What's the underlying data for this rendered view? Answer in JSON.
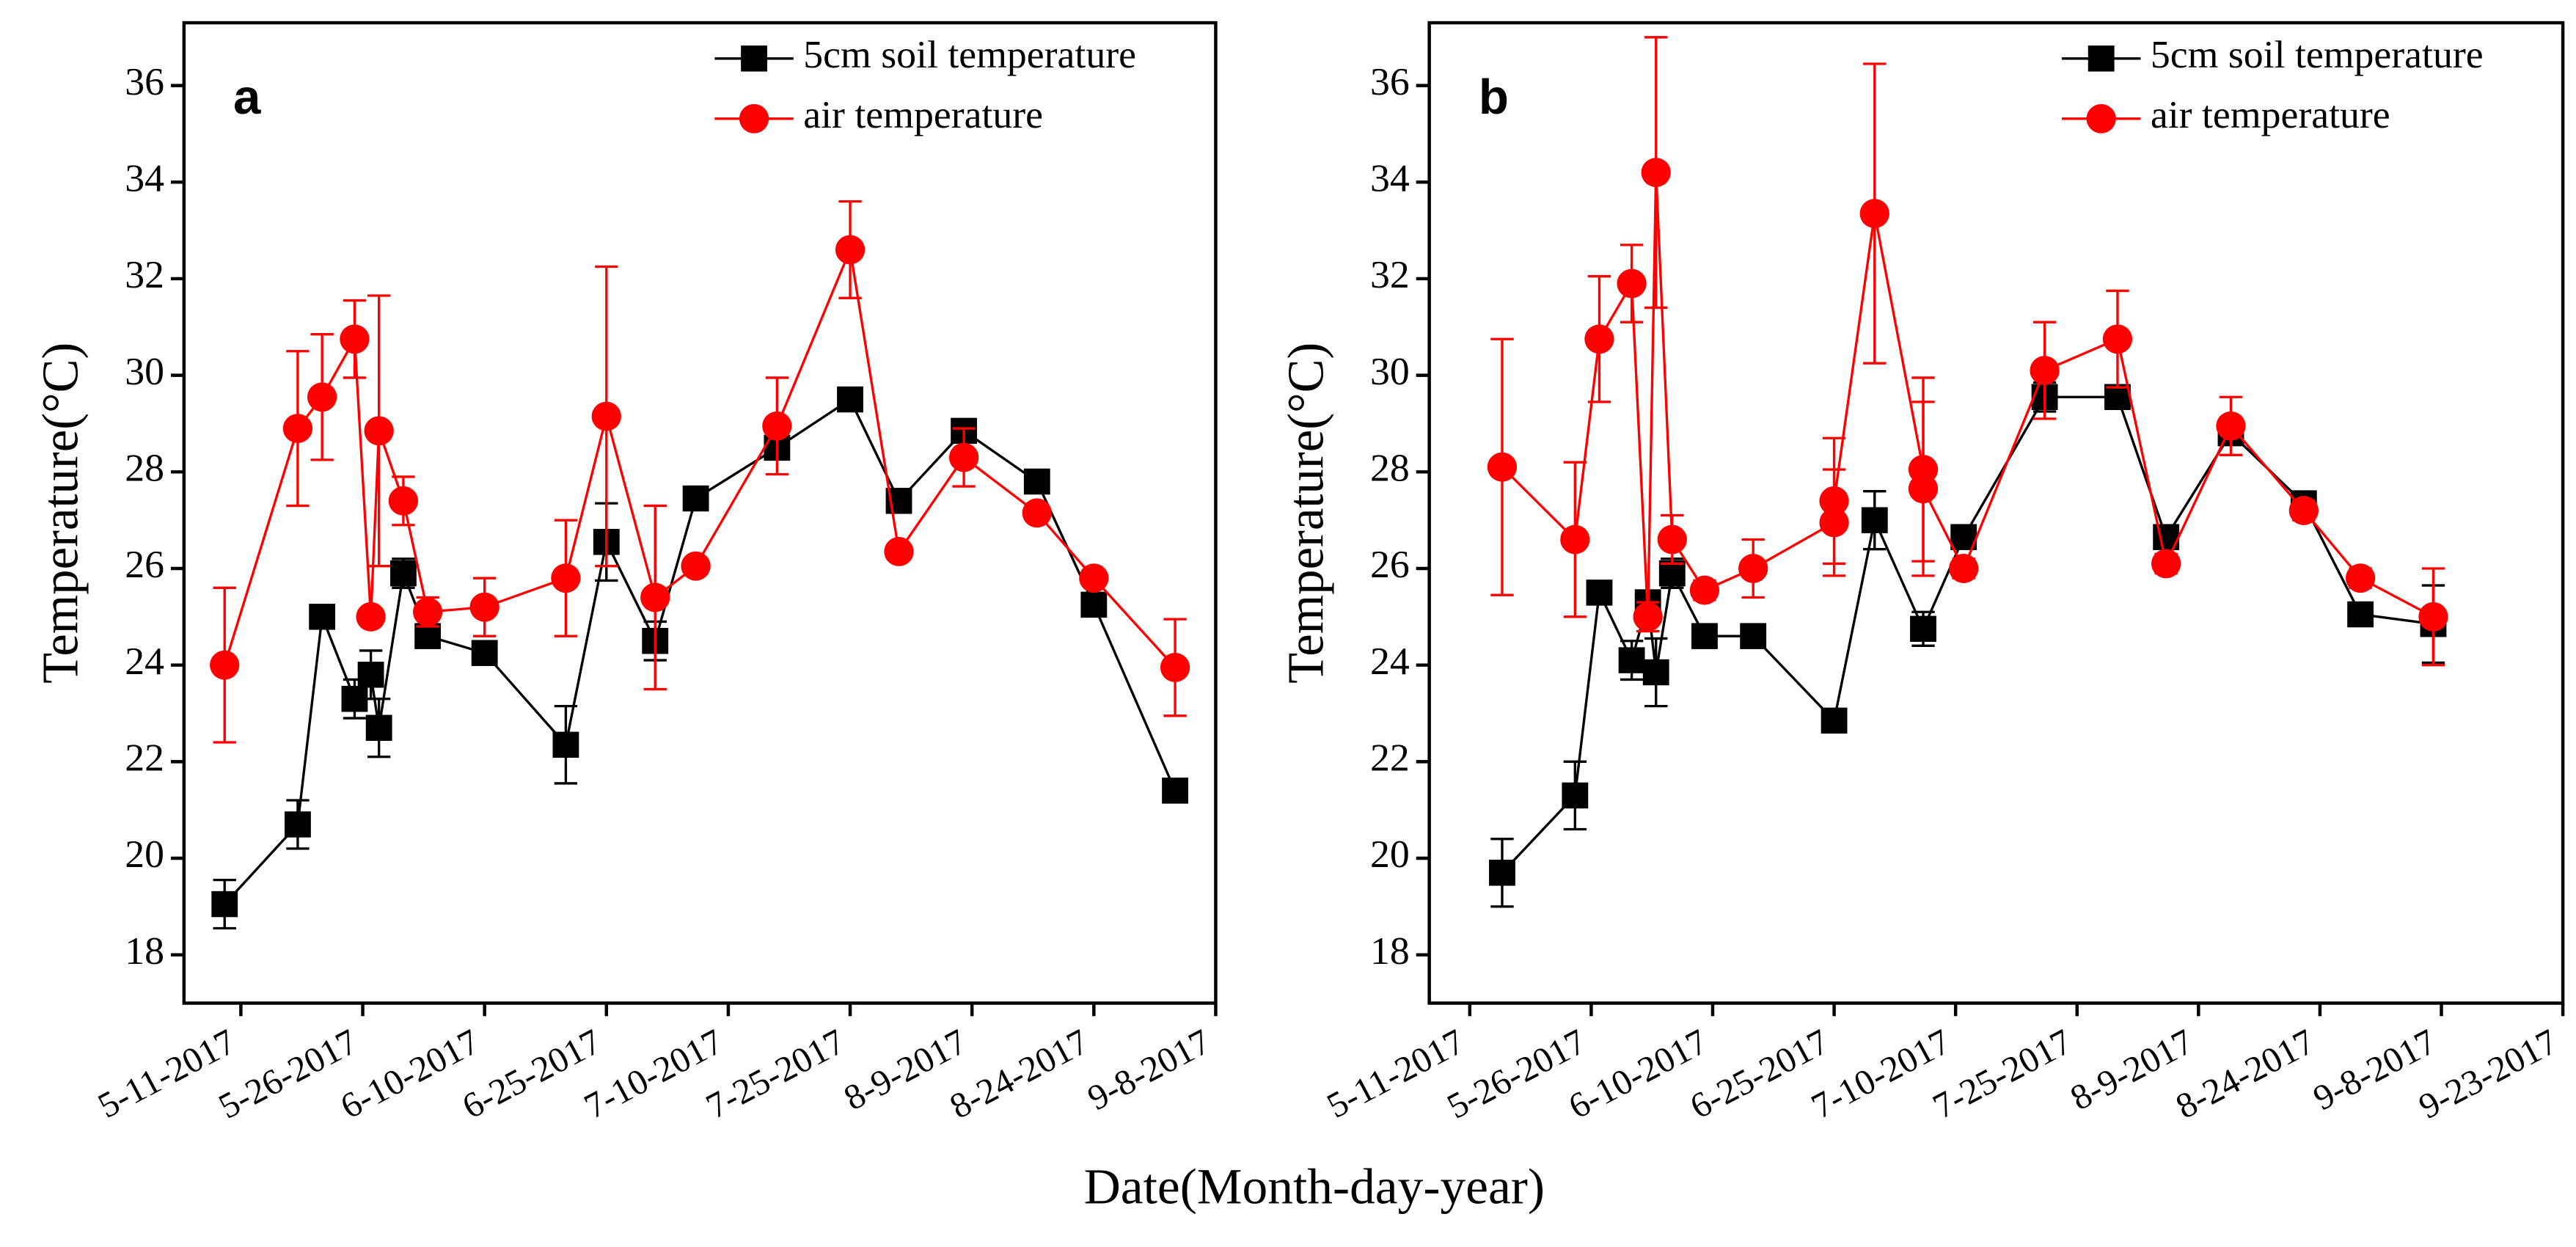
{
  "xlabel": "Date(Month-day-year)",
  "chart_data": [
    {
      "type": "line",
      "panel_label": "a",
      "ylabel": "Temperature(°C)",
      "xlim": [
        "5-4-2017",
        "9-8-2017"
      ],
      "xticks": [
        "5-11-2017",
        "5-26-2017",
        "6-10-2017",
        "6-25-2017",
        "7-10-2017",
        "7-25-2017",
        "8-9-2017",
        "8-24-2017",
        "9-8-2017"
      ],
      "ylim": [
        17,
        37.3
      ],
      "yticks": [
        18,
        20,
        22,
        24,
        26,
        28,
        30,
        32,
        34,
        36
      ],
      "legend": "upper right",
      "x": [
        "5-9-2017",
        "5-18-2017",
        "5-21-2017",
        "5-25-2017",
        "5-27-2017",
        "5-28-2017",
        "5-31-2017",
        "6-3-2017",
        "6-10-2017",
        "6-20-2017",
        "6-25-2017",
        "7-1-2017",
        "7-6-2017",
        "7-16-2017",
        "7-25-2017",
        "7-31-2017",
        "8-8-2017",
        "8-17-2017",
        "8-24-2017",
        "9-3-2017"
      ],
      "series": [
        {
          "name": "5cm soil temperature",
          "color": "#000000",
          "marker": "square",
          "values": [
            19.05,
            20.7,
            25.0,
            23.3,
            23.8,
            22.7,
            25.9,
            24.6,
            24.25,
            22.35,
            26.55,
            24.5,
            27.45,
            28.5,
            29.5,
            27.4,
            28.85,
            27.8,
            25.25,
            21.4
          ],
          "errors": [
            0.5,
            0.5,
            0.2,
            0.4,
            0.5,
            0.6,
            0.3,
            0.2,
            0.2,
            0.8,
            0.8,
            0.4,
            0.1,
            0.2,
            0.1,
            0.1,
            0.1,
            0.2,
            0.1,
            0.2
          ]
        },
        {
          "name": "air temperature",
          "color": "#ff0000",
          "marker": "circle",
          "values": [
            24.0,
            28.9,
            29.55,
            30.75,
            25.0,
            28.85,
            27.4,
            25.1,
            25.2,
            25.8,
            29.15,
            25.4,
            26.05,
            28.95,
            32.6,
            26.35,
            28.3,
            27.15,
            25.8,
            23.95
          ],
          "errors": [
            1.6,
            1.6,
            1.3,
            0.8,
            0.1,
            2.8,
            0.5,
            0.3,
            0.6,
            1.2,
            3.1,
            1.9,
            0.1,
            1.0,
            1.0,
            0.1,
            0.6,
            0.1,
            0.1,
            1.0
          ]
        }
      ]
    },
    {
      "type": "line",
      "panel_label": "b",
      "ylabel": "Temperature(°C)",
      "xlim": [
        "5-6-2017",
        "9-23-2017"
      ],
      "xticks": [
        "5-11-2017",
        "5-26-2017",
        "6-10-2017",
        "6-25-2017",
        "7-10-2017",
        "7-25-2017",
        "8-9-2017",
        "8-24-2017",
        "9-8-2017",
        "9-23-2017"
      ],
      "ylim": [
        17,
        37.3
      ],
      "yticks": [
        18,
        20,
        22,
        24,
        26,
        28,
        30,
        32,
        34,
        36
      ],
      "legend": "upper right",
      "series": [
        {
          "name": "5cm soil temperature",
          "color": "#000000",
          "marker": "square",
          "x": [
            "5-15-2017",
            "5-24-2017",
            "5-27-2017",
            "5-31-2017",
            "6-2-2017",
            "6-3-2017",
            "6-5-2017",
            "6-9-2017",
            "6-15-2017",
            "6-25-2017",
            "6-30-2017",
            "7-6-2017",
            "7-11-2017",
            "7-21-2017",
            "7-30-2017",
            "8-5-2017",
            "8-13-2017",
            "8-22-2017",
            "8-29-2017",
            "9-7-2017"
          ],
          "values": [
            19.7,
            21.3,
            25.5,
            24.1,
            25.3,
            23.85,
            25.9,
            24.6,
            24.6,
            22.85,
            27.0,
            24.75,
            26.65,
            29.55,
            29.55,
            26.65,
            28.8,
            27.35,
            25.05,
            24.85
          ],
          "errors": [
            0.7,
            0.7,
            0.1,
            0.4,
            0.1,
            0.7,
            0.3,
            0.1,
            0.2,
            0.1,
            0.6,
            0.35,
            0.1,
            0.3,
            0.2,
            0.1,
            0.2,
            0.1,
            0.2,
            0.8
          ]
        },
        {
          "name": "air temperature",
          "color": "#ff0000",
          "marker": "circle",
          "x": [
            "5-15-2017",
            "5-24-2017",
            "5-27-2017",
            "5-31-2017",
            "6-2-2017",
            "6-3-2017",
            "6-5-2017",
            "6-9-2017",
            "6-15-2017",
            "6-25-2017",
            "6-25-2017",
            "6-30-2017",
            "7-6-2017",
            "7-6-2017",
            "7-11-2017",
            "7-21-2017",
            "7-30-2017",
            "8-5-2017",
            "8-13-2017",
            "8-22-2017",
            "8-29-2017",
            "9-7-2017"
          ],
          "values": [
            28.1,
            26.6,
            30.75,
            31.9,
            25.0,
            34.2,
            26.6,
            25.55,
            26.0,
            26.95,
            27.4,
            33.35,
            28.05,
            27.65,
            26.0,
            30.1,
            30.75,
            26.1,
            28.95,
            27.2,
            25.8,
            25.0
          ],
          "errors": [
            2.65,
            1.6,
            1.3,
            0.8,
            0.3,
            2.8,
            0.5,
            0.2,
            0.6,
            1.1,
            1.3,
            3.1,
            1.9,
            1.8,
            0.2,
            1.0,
            1.0,
            0.2,
            0.6,
            0.2,
            0.2,
            1.0
          ]
        }
      ]
    }
  ]
}
